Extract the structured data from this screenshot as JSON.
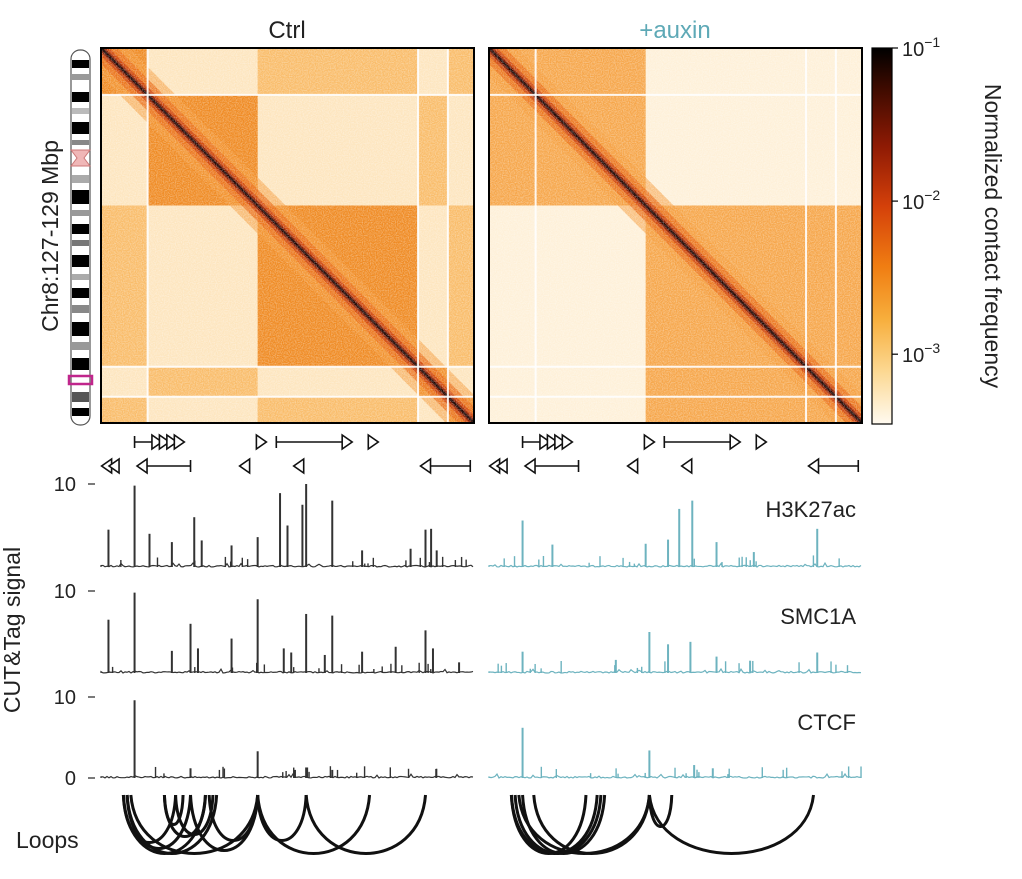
{
  "colors": {
    "ctrl": "#333333",
    "auxin": "#6db3bf",
    "auxin_title": "#5ea9b6",
    "loop": "#111111",
    "ideogram_highlight": "#c0268c"
  },
  "chart_data": {
    "type": "heatmap",
    "panels": [
      {
        "id": "ctrl",
        "title": "Ctrl"
      },
      {
        "id": "auxin",
        "title": "+auxin"
      }
    ],
    "heatmap": {
      "ylabel": "Chr8:127-129 Mbp",
      "region_start_mbp": 127,
      "region_end_mbp": 129,
      "colorbar": {
        "label": "Normalized contact frequency",
        "scale": "log",
        "range": [
          0.00035,
          0.1
        ],
        "ticks": [
          {
            "value": 0.1,
            "base": "10",
            "exp": "−1"
          },
          {
            "value": 0.01,
            "base": "10",
            "exp": "−2"
          },
          {
            "value": 0.001,
            "base": "10",
            "exp": "−3"
          }
        ]
      },
      "tad_boundaries_frac": [
        0.0,
        0.125,
        0.42,
        0.85,
        0.93,
        1.0
      ],
      "auxin_compartment_boundaries_frac": [
        0.0,
        0.42,
        1.0
      ]
    },
    "ctcf_motifs": [
      {
        "row": 0,
        "type": "arrow",
        "dir": "right",
        "x1": 0.09,
        "x2": 0.15
      },
      {
        "row": 0,
        "type": "head",
        "dir": "right",
        "x": 0.17
      },
      {
        "row": 0,
        "type": "head",
        "dir": "right",
        "x": 0.19
      },
      {
        "row": 0,
        "type": "head",
        "dir": "right",
        "x": 0.21
      },
      {
        "row": 0,
        "type": "head",
        "dir": "right",
        "x": 0.43
      },
      {
        "row": 0,
        "type": "arrow",
        "dir": "right",
        "x1": 0.47,
        "x2": 0.66
      },
      {
        "row": 0,
        "type": "head",
        "dir": "right",
        "x": 0.73
      },
      {
        "row": 1,
        "type": "head",
        "dir": "left",
        "x": 0.015
      },
      {
        "row": 1,
        "type": "head",
        "dir": "left",
        "x": 0.035
      },
      {
        "row": 1,
        "type": "arrow",
        "dir": "left",
        "x1": 0.11,
        "x2": 0.24
      },
      {
        "row": 1,
        "type": "head",
        "dir": "left",
        "x": 0.385
      },
      {
        "row": 1,
        "type": "head",
        "dir": "left",
        "x": 0.53
      },
      {
        "row": 1,
        "type": "arrow",
        "dir": "left",
        "x1": 0.87,
        "x2": 0.99
      }
    ],
    "tracks": [
      {
        "name": "H3K27ac",
        "ylim": [
          0,
          10
        ],
        "ticks": [
          {
            "value": 10,
            "label": "10"
          }
        ],
        "peaks": {
          "ctrl": [
            [
              0.02,
              4.5
            ],
            [
              0.09,
              9.8
            ],
            [
              0.13,
              4.0
            ],
            [
              0.19,
              3.0
            ],
            [
              0.25,
              6.0
            ],
            [
              0.27,
              3.2
            ],
            [
              0.35,
              2.6
            ],
            [
              0.42,
              3.6
            ],
            [
              0.48,
              8.9
            ],
            [
              0.5,
              5.0
            ],
            [
              0.54,
              7.5
            ],
            [
              0.55,
              10.0
            ],
            [
              0.62,
              8.0
            ],
            [
              0.7,
              2.0
            ],
            [
              0.83,
              2.2
            ],
            [
              0.87,
              4.5
            ],
            [
              0.885,
              4.6
            ],
            [
              0.9,
              2.0
            ]
          ],
          "auxin": [
            [
              0.09,
              5.6
            ],
            [
              0.17,
              2.7
            ],
            [
              0.42,
              2.8
            ],
            [
              0.48,
              3.3
            ],
            [
              0.51,
              7.0
            ],
            [
              0.545,
              8.0
            ],
            [
              0.61,
              3.0
            ],
            [
              0.71,
              1.8
            ],
            [
              0.88,
              4.6
            ]
          ]
        }
      },
      {
        "name": "SMC1A",
        "ylim": [
          0,
          10
        ],
        "ticks": [
          {
            "value": 10,
            "label": "10"
          }
        ],
        "peaks": {
          "ctrl": [
            [
              0.02,
              6.5
            ],
            [
              0.09,
              9.8
            ],
            [
              0.19,
              2.7
            ],
            [
              0.24,
              6.0
            ],
            [
              0.26,
              3.0
            ],
            [
              0.35,
              4.2
            ],
            [
              0.42,
              9.0
            ],
            [
              0.49,
              3.0
            ],
            [
              0.51,
              2.5
            ],
            [
              0.55,
              7.2
            ],
            [
              0.6,
              2.2
            ],
            [
              0.62,
              7.0
            ],
            [
              0.7,
              2.6
            ],
            [
              0.79,
              3.2
            ],
            [
              0.87,
              5.2
            ],
            [
              0.89,
              3.0
            ],
            [
              0.96,
              1.3
            ]
          ],
          "auxin": [
            [
              0.09,
              2.6
            ],
            [
              0.34,
              1.6
            ],
            [
              0.43,
              5.0
            ],
            [
              0.48,
              3.5
            ],
            [
              0.54,
              3.8
            ],
            [
              0.61,
              2.0
            ],
            [
              0.7,
              1.5
            ],
            [
              0.88,
              2.5
            ]
          ]
        }
      },
      {
        "name": "CTCF",
        "ylim": [
          0,
          10
        ],
        "ticks": [
          {
            "value": 10,
            "label": "10"
          },
          {
            "value": 0,
            "label": "0"
          }
        ],
        "peaks": {
          "ctrl": [
            [
              0.09,
              9.6
            ],
            [
              0.24,
              1.2
            ],
            [
              0.42,
              3.3
            ],
            [
              0.52,
              1.0
            ],
            [
              0.55,
              1.3
            ],
            [
              0.62,
              1.0
            ]
          ],
          "auxin": [
            [
              0.09,
              6.2
            ],
            [
              0.43,
              3.4
            ],
            [
              0.55,
              1.6
            ],
            [
              0.6,
              1.2
            ]
          ]
        }
      }
    ],
    "loops": {
      "label": "Loops",
      "ctrl": [
        [
          0.06,
          0.2
        ],
        [
          0.06,
          0.28
        ],
        [
          0.07,
          0.24
        ],
        [
          0.07,
          0.31
        ],
        [
          0.08,
          0.42
        ],
        [
          0.17,
          0.22
        ],
        [
          0.17,
          0.28
        ],
        [
          0.2,
          0.3
        ],
        [
          0.24,
          0.42
        ],
        [
          0.29,
          0.42
        ],
        [
          0.42,
          0.55
        ],
        [
          0.42,
          0.72
        ],
        [
          0.55,
          0.87
        ]
      ],
      "auxin": [
        [
          0.06,
          0.26
        ],
        [
          0.06,
          0.29
        ],
        [
          0.07,
          0.3
        ],
        [
          0.08,
          0.43
        ],
        [
          0.09,
          0.31
        ],
        [
          0.12,
          0.43
        ],
        [
          0.43,
          0.49
        ],
        [
          0.43,
          0.87
        ]
      ]
    },
    "track_axis_label": "CUT&Tag signal"
  }
}
